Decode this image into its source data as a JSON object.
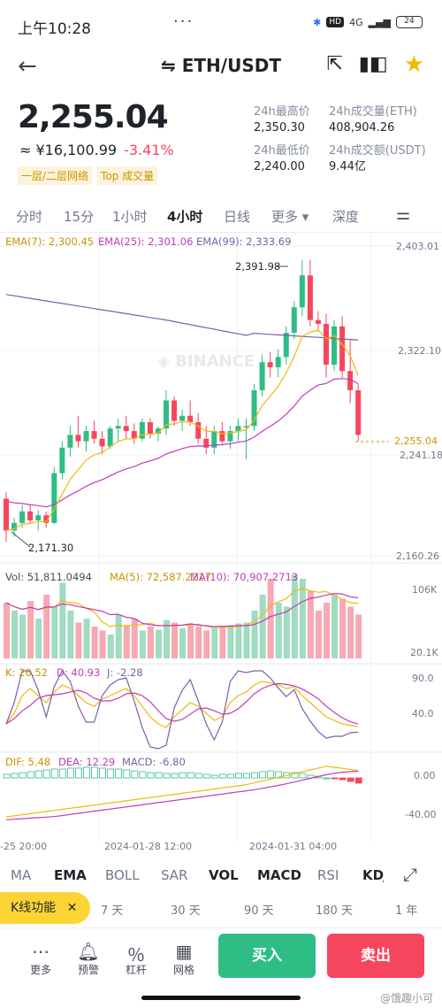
{
  "status": {
    "time": "上午10:28",
    "dots": "···",
    "network": "4G",
    "hd": "HD",
    "battery": "24"
  },
  "header": {
    "back_icon": "arrow-left",
    "pair": "⇋ ETH/USDT"
  },
  "price": {
    "last": "2,255.04",
    "cny": "≈ ¥16,100.99",
    "change": "-3.41%",
    "tag1": "一层/二层网络",
    "tag2": "Top 成交量"
  },
  "stats": {
    "high_label": "24h最高价",
    "high": "2,350.30",
    "vol_eth_label": "24h成交量(ETH)",
    "vol_eth": "408,904.26",
    "low_label": "24h最低价",
    "low": "2,240.00",
    "vol_usdt_label": "24h成交额(USDT)",
    "vol_usdt": "9.44亿"
  },
  "intervals": {
    "i1": "分时",
    "i2": "15分",
    "i3": "1小时",
    "i4": "4小时",
    "i5": "日线",
    "more": "更多 ▾",
    "depth": "深度"
  },
  "ema": {
    "ema7": "EMA(7): 2,300.45",
    "ema25": "EMA(25): 2,301.06",
    "ema99": "EMA(99): 2,333.69"
  },
  "price_axis": {
    "a1": "2,403.01",
    "a2": "2,322.10",
    "a3": "2,255.04",
    "a4": "2,241.18",
    "a5": "2,160.26"
  },
  "annotations": {
    "high": "2,391.98",
    "low": "2,171.30"
  },
  "volume": {
    "vol": "Vol: 51,811.0494",
    "ma5": "MA(5): 72,587.2217",
    "ma10": "MA(10): 70,907.2713",
    "top": "106K",
    "bottom": "20.1K"
  },
  "kdj": {
    "k": "K: 26.52",
    "d": "D: 40.93",
    "j": "J: -2.28",
    "top": "90.0",
    "bottom": "40.0"
  },
  "macd": {
    "dif": "DIF: 5.48",
    "dea": "DEA: 12.29",
    "macd": "MACD: -6.80",
    "top": "0.00",
    "bottom": "-40.00"
  },
  "time_axis": {
    "t1": "-25 20:00",
    "t2": "2024-01-28 12:00",
    "t3": "2024-01-31 04:00"
  },
  "ind_tabs": {
    "ma": "MA",
    "ema": "EMA",
    "boll": "BOLL",
    "sar": "SAR",
    "vol": "VOL",
    "macd": "MACD",
    "rsi": "RSI",
    "kdj": "KDJ"
  },
  "ranges": {
    "kfn": "K线功能",
    "close": "✕",
    "r1": "7 天",
    "r2": "30 天",
    "r3": "90 天",
    "r4": "180 天",
    "r5": "1 年"
  },
  "nav": {
    "more": "更多",
    "alert": "预警",
    "leverage": "杠杆",
    "grid": "网格",
    "buy": "买入",
    "sell": "卖出"
  },
  "watermark": "@饿趣小可",
  "colors": {
    "up": "#2ebd85",
    "down": "#f6465d",
    "ema7": "#f0b90b",
    "ema25": "#c13cb8",
    "ema99": "#7a5fa8",
    "accent": "#fcd535"
  }
}
